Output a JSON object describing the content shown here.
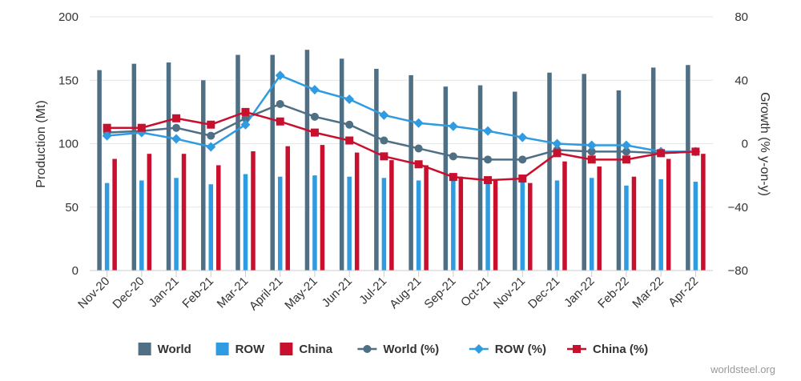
{
  "chart_data": {
    "type": "bar",
    "categories": [
      "Nov-20",
      "Dec-20",
      "Jan-21",
      "Feb-21",
      "Mar-21",
      "April-21",
      "May-21",
      "Jun-21",
      "Jul-21",
      "Aug-21",
      "Sep-21",
      "Oct-21",
      "Nov-21",
      "Dec-21",
      "Jan-22",
      "Feb-22",
      "Mar-22",
      "Apr-22"
    ],
    "series": [
      {
        "name": "World",
        "kind": "bar",
        "axis": "left",
        "color": "#4f6f85",
        "values": [
          158,
          163,
          164,
          150,
          170,
          170,
          174,
          167,
          159,
          154,
          145,
          146,
          141,
          156,
          155,
          142,
          160,
          162
        ]
      },
      {
        "name": "ROW",
        "kind": "bar",
        "axis": "left",
        "color": "#2f9be0",
        "values": [
          69,
          71,
          73,
          68,
          76,
          74,
          75,
          74,
          73,
          71,
          71,
          70,
          71,
          71,
          73,
          67,
          72,
          70
        ]
      },
      {
        "name": "China",
        "kind": "bar",
        "axis": "left",
        "color": "#c8102e",
        "values": [
          88,
          92,
          92,
          83,
          94,
          98,
          99,
          93,
          87,
          83,
          74,
          72,
          69,
          86,
          82,
          74,
          88,
          92
        ]
      },
      {
        "name": "World (%)",
        "kind": "line",
        "axis": "right",
        "marker": "circle",
        "color": "#4f6f85",
        "values": [
          7,
          8,
          10,
          5,
          16,
          25,
          17,
          12,
          2,
          -3,
          -8,
          -10,
          -10,
          -4,
          -5,
          -5,
          -6,
          -5
        ]
      },
      {
        "name": "ROW (%)",
        "kind": "line",
        "axis": "right",
        "marker": "diamond",
        "color": "#2f9be0",
        "values": [
          5,
          7,
          3,
          -2,
          12,
          43,
          34,
          28,
          18,
          13,
          11,
          8,
          4,
          0,
          -1,
          -1,
          -5,
          -5
        ]
      },
      {
        "name": "China (%)",
        "kind": "line",
        "axis": "right",
        "marker": "square",
        "color": "#c8102e",
        "values": [
          10,
          10,
          16,
          12,
          20,
          14,
          7,
          2,
          -8,
          -13,
          -21,
          -23,
          -22,
          -6,
          -10,
          -10,
          -6,
          -5
        ]
      }
    ],
    "yleft": {
      "label": "Production (Mt)",
      "min": 0,
      "max": 200,
      "ticks": [
        0,
        50,
        100,
        150,
        200
      ],
      "tick_labels": [
        "0",
        "50",
        "100",
        "150",
        "200"
      ]
    },
    "yright": {
      "label": "Growth (% y-on-y)",
      "min": -80,
      "max": 80,
      "ticks": [
        -80,
        -40,
        0,
        40,
        80
      ],
      "tick_labels": [
        "−80",
        "−40",
        "0",
        "40",
        "80"
      ]
    },
    "grid": true,
    "legend_position": "bottom"
  },
  "credit": "worldsteel.org"
}
